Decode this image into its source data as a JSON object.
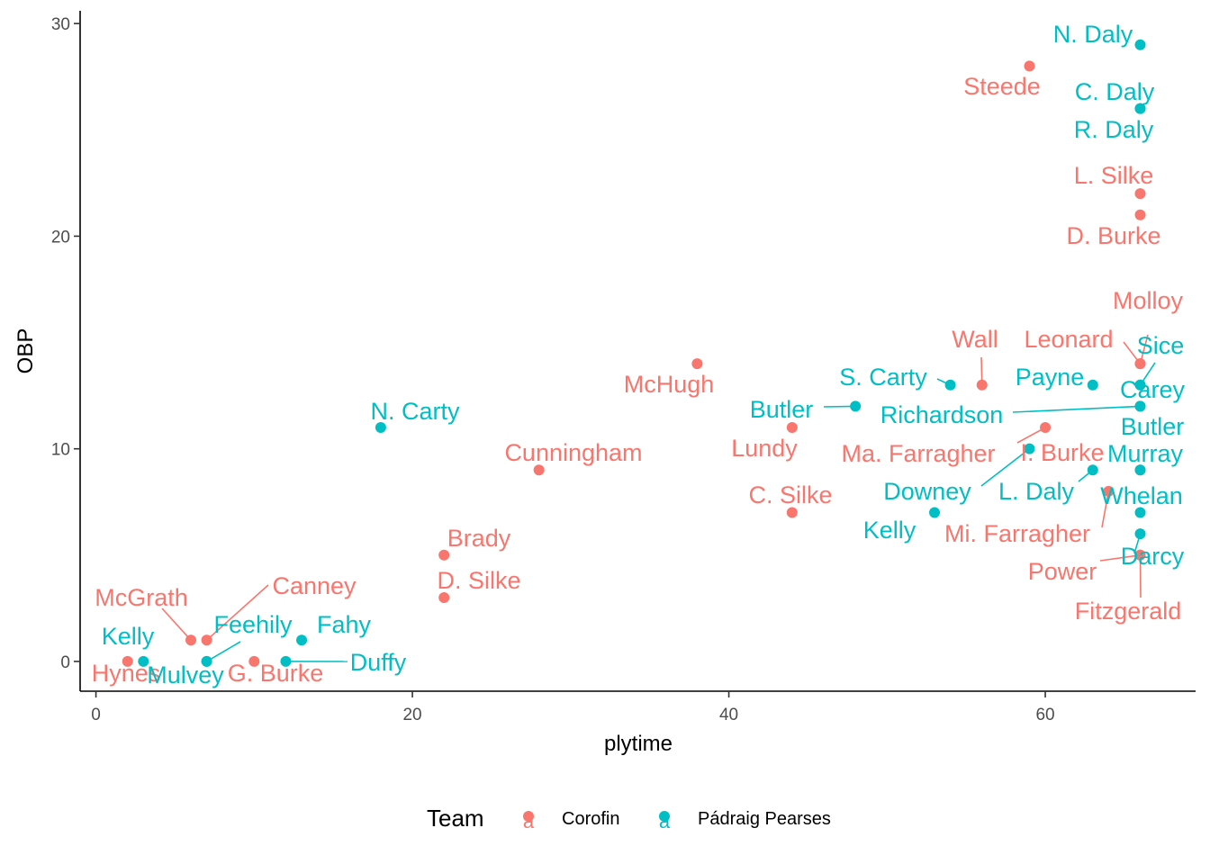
{
  "chart_data": {
    "type": "scatter",
    "xlabel": "plytime",
    "ylabel": "OBP",
    "xlim": [
      -1,
      69.5
    ],
    "ylim": [
      -1.4,
      30.6
    ],
    "xticks": [
      0,
      20,
      40,
      60
    ],
    "yticks": [
      0,
      10,
      20,
      30
    ],
    "grid": false,
    "legend": {
      "title": "Team",
      "position": "bottom",
      "entries": [
        {
          "name": "Corofin",
          "color": "#F8766D"
        },
        {
          "name": "Pádraig Pearses",
          "color": "#00BFC4"
        }
      ]
    },
    "series": [
      {
        "name": "Corofin",
        "color": "#F8766D",
        "points": [
          {
            "label": "Steede",
            "x": 59,
            "y": 28
          },
          {
            "label": "L. Silke",
            "x": 66,
            "y": 22
          },
          {
            "label": "D. Burke",
            "x": 66,
            "y": 21
          },
          {
            "label": "Molloy",
            "x": 66,
            "y": 14
          },
          {
            "label": "Leonard",
            "x": 66,
            "y": 14
          },
          {
            "label": "Wall",
            "x": 56,
            "y": 13
          },
          {
            "label": "McHugh",
            "x": 38,
            "y": 14
          },
          {
            "label": "Lundy",
            "x": 44,
            "y": 11
          },
          {
            "label": "Ma. Farragher",
            "x": 60,
            "y": 11
          },
          {
            "label": "I. Burke",
            "x": 66,
            "y": 9
          },
          {
            "label": "Cunningham",
            "x": 28,
            "y": 9
          },
          {
            "label": "C. Silke",
            "x": 44,
            "y": 7
          },
          {
            "label": "Mi. Farragher",
            "x": 64,
            "y": 8
          },
          {
            "label": "Power",
            "x": 66,
            "y": 5
          },
          {
            "label": "Fitzgerald",
            "x": 66,
            "y": 5
          },
          {
            "label": "Brady",
            "x": 22,
            "y": 5
          },
          {
            "label": "D. Silke",
            "x": 22,
            "y": 3
          },
          {
            "label": "McGrath",
            "x": 6,
            "y": 1
          },
          {
            "label": "Canney",
            "x": 7,
            "y": 1
          },
          {
            "label": "Hynes",
            "x": 2,
            "y": 0
          },
          {
            "label": "G. Burke",
            "x": 10,
            "y": 0
          }
        ]
      },
      {
        "name": "Pádraig Pearses",
        "color": "#00BFC4",
        "points": [
          {
            "label": "N. Daly",
            "x": 66,
            "y": 29
          },
          {
            "label": "C. Daly",
            "x": 66,
            "y": 26
          },
          {
            "label": "R. Daly",
            "x": 66,
            "y": 26
          },
          {
            "label": "Sice",
            "x": 66,
            "y": 13
          },
          {
            "label": "S. Carty",
            "x": 54,
            "y": 13
          },
          {
            "label": "Payne",
            "x": 63,
            "y": 13
          },
          {
            "label": "Carey",
            "x": 66,
            "y": 13
          },
          {
            "label": "Butler",
            "x": 48,
            "y": 12
          },
          {
            "label": "Richardson",
            "x": 66,
            "y": 12
          },
          {
            "label": "Butler",
            "x": 66,
            "y": 12
          },
          {
            "label": "N. Carty",
            "x": 18,
            "y": 11
          },
          {
            "label": "Downey",
            "x": 59,
            "y": 10
          },
          {
            "label": "L. Daly",
            "x": 63,
            "y": 9
          },
          {
            "label": "Murray",
            "x": 66,
            "y": 9
          },
          {
            "label": "Whelan",
            "x": 66,
            "y": 7
          },
          {
            "label": "Kelly",
            "x": 53,
            "y": 7
          },
          {
            "label": "Darcy",
            "x": 66,
            "y": 6
          },
          {
            "label": "Fahy",
            "x": 13,
            "y": 1
          },
          {
            "label": "Kelly",
            "x": 3,
            "y": 0
          },
          {
            "label": "Feehily",
            "x": 7,
            "y": 0
          },
          {
            "label": "Mulvey",
            "x": 7,
            "y": 0
          },
          {
            "label": "Duffy",
            "x": 12,
            "y": 0
          }
        ]
      }
    ]
  }
}
